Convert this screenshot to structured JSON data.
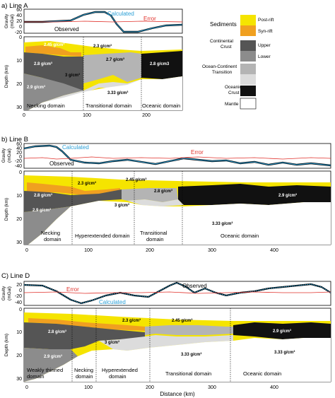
{
  "legend": {
    "sediments": "Sediments",
    "post_rift": "Post-rift",
    "syn_rift": "Syn-rift",
    "continental_crust": [
      "Continental",
      "Crust"
    ],
    "upper": "Upper",
    "lower": "Lower",
    "oct": [
      "Ocean-Continent",
      "Transition"
    ],
    "oceanic_crust": [
      "Oceanic",
      "Crust"
    ],
    "mantle": "Mantle"
  },
  "colors": {
    "post_rift": "#f5e400",
    "syn_rift": "#f0a020",
    "upper_crust": "#555555",
    "lower_crust": "#8c8c8c",
    "oct": "#b4b4b4",
    "oct_light": "#dcdcdc",
    "oceanic": "#111111",
    "mantle": "#ffffff",
    "calculated": "#2a9fd6",
    "error": "#e0302a"
  },
  "panels": [
    {
      "title": "a) Line A",
      "gravity_ylabel": [
        "Gravity",
        "(mGal)"
      ],
      "gravity_ticks": [
        "60",
        "40",
        "20",
        "0",
        "-20"
      ],
      "calculated": "Calculated",
      "error": "Error",
      "observed": "Observed",
      "depth_ylabel": "Depth (km)",
      "depth_ticks": [
        "0",
        "10",
        "20",
        "30"
      ],
      "x_ticks": [
        "0",
        "100",
        "200"
      ],
      "densities": [
        "2.45 g/cm³",
        "2.3 g/cm³",
        "2.8 g/cm³",
        "2.7 g/cm³",
        "2.8 g/cm3",
        "3 g/cm³",
        "2.9 g/cm³",
        "3.33 g/cm³"
      ],
      "domains": [
        "Necking domain",
        "Transitional domain",
        "Oceanic domain"
      ]
    },
    {
      "title": "b) Line B",
      "gravity_ylabel": [
        "Gravity",
        "(mGal)"
      ],
      "gravity_ticks": [
        "60",
        "40",
        "20",
        "0",
        "-20",
        "-40"
      ],
      "calculated": "Calculated",
      "error": "Error",
      "observed": "Observed",
      "depth_ylabel": "Depth (km)",
      "depth_ticks": [
        "0",
        "10",
        "20",
        "30"
      ],
      "x_ticks": [
        "0",
        "100",
        "200",
        "300",
        "400"
      ],
      "densities": [
        "2.45 g/cm³",
        "2.3 g/cm³",
        "2.8 g/cm³",
        "2.8 g/cm³",
        "2.9 g/cm³",
        "3 g/cm³",
        "2.9 g/cm³",
        "3.33 g/cm³"
      ],
      "domains": [
        "Necking",
        "domain",
        "Hyperextended domain",
        "Transitional",
        "domain",
        "Oceanic domain"
      ]
    },
    {
      "title": "C) Line D",
      "gravity_ylabel": [
        "Gravity",
        "(mGal)"
      ],
      "gravity_ticks": [
        "20",
        "0",
        "-20",
        "-40"
      ],
      "calculated": "Calculated",
      "error": "Error",
      "observed": "Observed",
      "depth_ylabel": "Depth (km)",
      "depth_ticks": [
        "0",
        "10",
        "20",
        "30"
      ],
      "x_ticks": [
        "0",
        "100",
        "200",
        "300",
        "400"
      ],
      "xlabel": "Distance (km)",
      "densities": [
        "2.45 g/cm³",
        "2.8 g/cm³",
        "2.3 g/cm³",
        "2.9 g/cm³",
        "3 g/cm³",
        "2.9 g/cm³",
        "3.33 g/cm³",
        "3.33 g/cm³"
      ],
      "domains": [
        "Weakly thinned",
        "domain",
        "Necking",
        "domain",
        "Hyperextended",
        "domain",
        "Transitional domain",
        "Oceanic domain"
      ]
    }
  ]
}
